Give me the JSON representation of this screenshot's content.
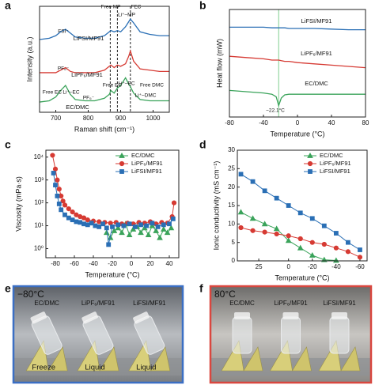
{
  "chart_data": [
    {
      "type": "line",
      "panel": "a",
      "x_label": "Raman shift (cm⁻¹)",
      "y_label": "Intensity (a.u.)",
      "x": [
        650,
        680,
        700,
        715,
        730,
        745,
        760,
        790,
        820,
        850,
        865,
        870,
        880,
        890,
        900,
        915,
        925,
        930,
        940,
        960,
        990,
        1020,
        1050
      ],
      "series": [
        {
          "name": "LiFSI/MF91",
          "color": "#2a6fb5",
          "values": [
            7.2,
            7.3,
            7.5,
            7.8,
            8.0,
            7.7,
            7.4,
            7.3,
            7.3,
            7.5,
            7.8,
            7.9,
            7.8,
            7.9,
            7.8,
            8.2,
            8.6,
            8.8,
            8.5,
            7.8,
            7.6,
            7.5,
            7.5
          ]
        },
        {
          "name": "LiPF₆/MF91",
          "color": "#d63a33",
          "values": [
            4.6,
            4.6,
            4.6,
            4.8,
            5.0,
            4.7,
            4.6,
            4.6,
            4.6,
            4.8,
            5.1,
            5.2,
            5.0,
            5.2,
            5.1,
            5.3,
            5.9,
            6.3,
            5.5,
            4.9,
            4.8,
            4.7,
            4.7
          ]
        },
        {
          "name": "EC/DMC",
          "color": "#3aa35a",
          "values": [
            2.3,
            2.4,
            2.7,
            3.2,
            3.6,
            2.9,
            2.5,
            2.4,
            2.4,
            2.6,
            2.9,
            3.2,
            3.0,
            3.4,
            3.6,
            4.2,
            3.7,
            3.5,
            3.0,
            2.5,
            2.4,
            2.4,
            2.4
          ]
        }
      ],
      "xlim": [
        650,
        1050
      ],
      "xticks": [
        700,
        800,
        900,
        1000
      ],
      "ylim": [
        1.5,
        9.8
      ],
      "legend": "inline",
      "reference_lines": [
        868,
        890,
        930
      ],
      "reference_color": "#222222",
      "reference_dashed": true,
      "annotations": [
        "FSI⁻",
        "Free MP",
        "Li⁺–MP",
        "FEC",
        "PF₆⁻",
        "Free EC",
        "Li⁺–EC",
        "PF₆⁻",
        "Free EC",
        "Li⁺–EC",
        "Free DMC",
        "Li⁺–DMC"
      ]
    },
    {
      "type": "line",
      "panel": "b",
      "x_label": "Temperature (°C)",
      "y_label": "Heat flow (mW)",
      "x": [
        -80,
        -60,
        -40,
        -30,
        -25,
        -22.1,
        -19,
        -15,
        -10,
        0,
        20,
        40,
        60,
        80
      ],
      "series": [
        {
          "name": "LiFSI/MF91",
          "color": "#2a6fb5",
          "values": [
            8.6,
            8.6,
            8.6,
            8.55,
            8.55,
            8.55,
            8.55,
            8.55,
            8.5,
            8.5,
            8.5,
            8.45,
            8.4,
            8.4
          ]
        },
        {
          "name": "LiPF₆/MF91",
          "color": "#d63a33",
          "values": [
            6.3,
            6.2,
            6.1,
            6.0,
            6.0,
            6.0,
            5.95,
            5.9,
            5.9,
            5.8,
            5.7,
            5.6,
            5.5,
            5.4
          ]
        },
        {
          "name": "EC/DMC",
          "color": "#3aa35a",
          "values": [
            3.6,
            3.5,
            3.4,
            3.3,
            3.1,
            2.4,
            3.0,
            3.25,
            3.3,
            3.3,
            3.3,
            3.3,
            3.3,
            3.3
          ]
        }
      ],
      "xlim": [
        -80,
        80
      ],
      "xticks": [
        -80,
        -40,
        0,
        40,
        80
      ],
      "ylim": [
        1.5,
        10
      ],
      "legend": "inline",
      "reference_lines": [
        -22.1
      ],
      "reference_color": "#7fcf8f",
      "reference_dashed": false,
      "annotations": [
        "−22.1°C"
      ]
    },
    {
      "type": "line",
      "panel": "c",
      "x_label": "Temperature (°C)",
      "y_label": "Viscosity (mPa·s)",
      "log_y": true,
      "series": [
        {
          "name": "EC/DMC",
          "color": "#3aa35a",
          "marker": "triangle",
          "x": [
            -26,
            -22,
            -18,
            -14,
            -10,
            -6,
            -2,
            2,
            6,
            10,
            14,
            18,
            22,
            26,
            30,
            34,
            38,
            42
          ],
          "values": [
            5,
            3,
            6,
            8,
            5,
            12,
            4,
            7,
            9,
            5,
            8,
            4,
            10,
            6,
            3,
            7,
            5,
            8
          ]
        },
        {
          "name": "LiPF₆/MF91",
          "color": "#d63a33",
          "marker": "circle",
          "x": [
            -83,
            -80,
            -78,
            -76,
            -74,
            -72,
            -70,
            -66,
            -62,
            -58,
            -54,
            -50,
            -46,
            -40,
            -34,
            -28,
            -22,
            -16,
            -10,
            -4,
            2,
            8,
            14,
            20,
            26,
            32,
            38,
            43,
            45
          ],
          "values": [
            12000,
            3000,
            1000,
            400,
            200,
            120,
            80,
            55,
            40,
            30,
            25,
            22,
            18,
            16,
            15,
            14,
            13,
            14,
            12,
            13,
            12,
            14,
            13,
            15,
            12,
            14,
            13,
            25,
            100
          ]
        },
        {
          "name": "LiFSI/MF91",
          "color": "#2a6fb5",
          "marker": "square",
          "x": [
            -82,
            -80,
            -78,
            -76,
            -74,
            -70,
            -66,
            -62,
            -58,
            -54,
            -50,
            -46,
            -42,
            -38,
            -34,
            -30,
            -26,
            -24,
            -20,
            -14,
            -8,
            -2,
            4,
            10,
            16,
            22,
            28,
            34,
            40,
            44
          ],
          "values": [
            2000,
            600,
            200,
            90,
            50,
            30,
            22,
            18,
            15,
            14,
            12,
            11,
            13,
            10,
            9,
            12,
            8,
            1.5,
            9,
            11,
            10,
            12,
            9,
            11,
            10,
            13,
            9,
            11,
            12,
            20
          ]
        }
      ],
      "xlim": [
        -90,
        50
      ],
      "xticks": [
        -80,
        -60,
        -40,
        -20,
        0,
        20,
        40
      ],
      "ylim": [
        0.4,
        20000
      ],
      "yticks": [
        {
          "value": 1,
          "label": "10⁰"
        },
        {
          "value": 10,
          "label": "10¹"
        },
        {
          "value": 100,
          "label": "10²"
        },
        {
          "value": 1000,
          "label": "10³"
        },
        {
          "value": 10000,
          "label": "10⁴"
        }
      ],
      "legend": "upper right"
    },
    {
      "type": "line",
      "panel": "d",
      "x_label": "Temperature (°C)",
      "y_label": "Ionic conductivity (mS cm⁻¹)",
      "x": [
        40,
        30,
        20,
        10,
        0,
        -10,
        -20,
        -30,
        -40,
        -50,
        -60
      ],
      "series": [
        {
          "name": "EC/DMC",
          "color": "#3aa35a",
          "marker": "triangle",
          "values": [
            13.2,
            11.5,
            10,
            8.7,
            5.5,
            3.5,
            1.5,
            0.3,
            0.1,
            null,
            null
          ]
        },
        {
          "name": "LiPF₆/MF91",
          "color": "#d63a33",
          "marker": "circle",
          "values": [
            9,
            8.2,
            7.8,
            7.3,
            6.8,
            6,
            5,
            4.5,
            3.5,
            2.5,
            1
          ]
        },
        {
          "name": "LiFSI/MF91",
          "color": "#2a6fb5",
          "marker": "square",
          "values": [
            23.5,
            21.5,
            19,
            17,
            15,
            13,
            11.5,
            9.5,
            7.5,
            5,
            3
          ]
        }
      ],
      "xlim": [
        43,
        -66
      ],
      "xticks": [
        25,
        0,
        -20,
        -40,
        -60
      ],
      "ylim": [
        0,
        30
      ],
      "yticks": [
        0,
        5,
        10,
        15,
        20,
        25,
        30
      ],
      "legend": "upper right"
    }
  ],
  "photos": [
    {
      "panel": "e",
      "temperature": "−80°C",
      "border_color": "#3b6fc4",
      "samples": [
        "EC/DMC",
        "LiPF₆/MF91",
        "LiFSI/MF91"
      ],
      "states": [
        "Freeze",
        "Liquid",
        "Liquid"
      ]
    },
    {
      "panel": "f",
      "temperature": "80°C",
      "border_color": "#d9473f",
      "samples": [
        "EC/DMC",
        "LiPF₆/MF91",
        "LiFSI/MF91"
      ]
    }
  ]
}
